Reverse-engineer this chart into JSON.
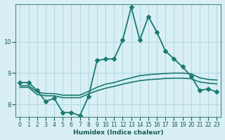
{
  "xlabel": "Humidex (Indice chaleur)",
  "ylabel": "",
  "background_color": "#d7eff5",
  "grid_color": "#b0d8e0",
  "line_color": "#1a7a6e",
  "xlim": [
    -0.5,
    23.5
  ],
  "ylim": [
    7.6,
    11.2
  ],
  "x_ticks": [
    0,
    1,
    2,
    3,
    4,
    5,
    6,
    7,
    8,
    9,
    10,
    11,
    12,
    13,
    14,
    15,
    16,
    17,
    18,
    19,
    20,
    21,
    22,
    23
  ],
  "y_ticks": [
    8,
    9,
    10
  ],
  "series": [
    {
      "x": [
        0,
        1,
        2,
        3,
        4,
        5,
        6,
        7,
        8,
        9,
        10,
        11,
        12,
        13,
        14,
        15,
        16,
        17,
        18,
        19,
        20,
        21,
        22,
        23
      ],
      "y": [
        8.7,
        8.7,
        8.45,
        8.1,
        8.2,
        7.75,
        7.75,
        7.65,
        8.25,
        9.4,
        9.45,
        9.45,
        10.05,
        11.1,
        10.05,
        10.8,
        10.3,
        9.7,
        9.45,
        9.2,
        8.9,
        8.45,
        8.5,
        8.4
      ],
      "marker": "D",
      "markersize": 3,
      "linewidth": 1.3
    },
    {
      "x": [
        0,
        1,
        2,
        3,
        4,
        5,
        6,
        7,
        8,
        9,
        10,
        11,
        12,
        13,
        14,
        15,
        16,
        17,
        18,
        19,
        20,
        21,
        22,
        23
      ],
      "y": [
        8.6,
        8.6,
        8.4,
        8.35,
        8.35,
        8.3,
        8.3,
        8.3,
        8.42,
        8.55,
        8.65,
        8.7,
        8.78,
        8.85,
        8.92,
        8.95,
        8.97,
        8.99,
        9.0,
        9.0,
        8.98,
        8.85,
        8.8,
        8.78
      ],
      "marker": null,
      "markersize": 0,
      "linewidth": 1.2
    },
    {
      "x": [
        0,
        1,
        2,
        3,
        4,
        5,
        6,
        7,
        8,
        9,
        10,
        11,
        12,
        13,
        14,
        15,
        16,
        17,
        18,
        19,
        20,
        21,
        22,
        23
      ],
      "y": [
        8.55,
        8.55,
        8.32,
        8.28,
        8.28,
        8.22,
        8.22,
        8.22,
        8.34,
        8.44,
        8.52,
        8.58,
        8.65,
        8.71,
        8.76,
        8.79,
        8.81,
        8.83,
        8.84,
        8.84,
        8.82,
        8.72,
        8.68,
        8.66
      ],
      "marker": null,
      "markersize": 0,
      "linewidth": 1.2
    }
  ]
}
